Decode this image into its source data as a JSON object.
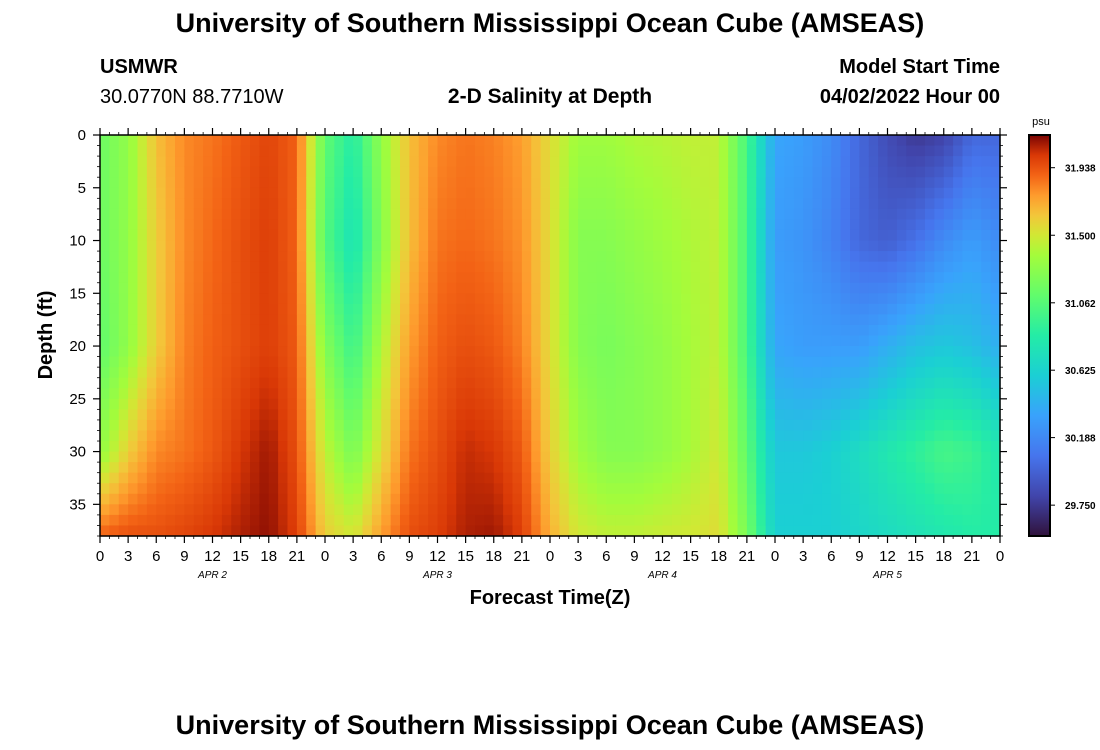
{
  "header": {
    "title": "University of Southern Mississippi Ocean Cube (AMSEAS)",
    "station_name": "USMWR",
    "station_coords": "30.0770N  88.7710W",
    "plot_title": "2-D Salinity at Depth",
    "model_start_label": "Model Start Time",
    "model_start_value": "04/02/2022 Hour 00",
    "bottom_title": "University of Southern Mississippi Ocean Cube (AMSEAS)"
  },
  "chart_data": {
    "type": "heatmap",
    "title": "2-D Salinity at Depth",
    "xlabel": "Forecast Time(Z)",
    "ylabel": "Depth (ft)",
    "x_hours_range": [
      0,
      96
    ],
    "y_range": [
      0,
      38
    ],
    "y_ticks": [
      0,
      5,
      10,
      15,
      20,
      25,
      30,
      35
    ],
    "x_tick_labels": [
      "0",
      "3",
      "6",
      "9",
      "12",
      "15",
      "18",
      "21",
      "0",
      "3",
      "6",
      "9",
      "12",
      "15",
      "18",
      "21",
      "0",
      "3",
      "6",
      "9",
      "12",
      "15",
      "18",
      "21",
      "0",
      "3",
      "6",
      "9",
      "12",
      "15",
      "18",
      "21",
      "0"
    ],
    "day_labels": [
      "APR 2",
      "APR 3",
      "APR 4",
      "APR 5"
    ],
    "colorbar": {
      "unit": "psu",
      "ticks": [
        "31.938",
        "31.500",
        "31.062",
        "30.625",
        "30.188",
        "29.750"
      ],
      "tick_values": [
        31.938,
        31.5,
        31.062,
        30.625,
        30.188,
        29.75
      ],
      "range": [
        29.55,
        32.15
      ]
    },
    "depth_levels_ft": [
      0,
      10,
      20,
      30,
      38
    ],
    "hours": [
      0,
      3,
      6,
      9,
      12,
      15,
      18,
      21,
      24,
      27,
      30,
      33,
      36,
      39,
      42,
      45,
      48,
      51,
      54,
      57,
      60,
      63,
      66,
      69,
      72,
      75,
      78,
      81,
      84,
      87,
      90,
      93,
      96
    ],
    "salinity_psu": [
      [
        31.15,
        31.3,
        31.65,
        31.8,
        31.85,
        31.92,
        31.98,
        31.9,
        31.1,
        30.85,
        31.3,
        31.65,
        31.8,
        31.85,
        31.82,
        31.75,
        31.55,
        31.35,
        31.35,
        31.4,
        31.42,
        31.45,
        31.45,
        31.0,
        30.35,
        30.3,
        30.2,
        30.0,
        29.85,
        29.75,
        29.8,
        30.0,
        30.0
      ],
      [
        31.15,
        31.3,
        31.6,
        31.8,
        31.88,
        31.95,
        32.0,
        31.9,
        31.05,
        30.75,
        31.25,
        31.65,
        31.85,
        31.88,
        31.85,
        31.78,
        31.55,
        31.25,
        31.25,
        31.3,
        31.35,
        31.4,
        31.45,
        31.0,
        30.3,
        30.25,
        30.15,
        30.0,
        29.95,
        30.05,
        30.2,
        30.3,
        30.2
      ],
      [
        31.1,
        31.3,
        31.6,
        31.82,
        31.9,
        31.95,
        32.0,
        31.92,
        31.25,
        30.95,
        31.4,
        31.75,
        31.9,
        31.95,
        31.92,
        31.82,
        31.55,
        31.25,
        31.2,
        31.25,
        31.3,
        31.38,
        31.45,
        31.0,
        30.35,
        30.3,
        30.3,
        30.3,
        30.4,
        30.5,
        30.55,
        30.5,
        30.4
      ],
      [
        31.3,
        31.6,
        31.8,
        31.85,
        31.92,
        32.02,
        32.1,
        31.95,
        31.45,
        31.2,
        31.55,
        31.85,
        31.95,
        32.05,
        32.02,
        31.92,
        31.6,
        31.35,
        31.25,
        31.25,
        31.3,
        31.38,
        31.5,
        31.1,
        30.55,
        30.55,
        30.6,
        30.7,
        30.8,
        30.9,
        31.0,
        30.95,
        30.8
      ],
      [
        31.9,
        31.95,
        31.95,
        31.98,
        32.02,
        32.08,
        32.12,
        32.0,
        31.6,
        31.5,
        31.75,
        31.95,
        32.0,
        32.08,
        32.1,
        32.0,
        31.7,
        31.5,
        31.45,
        31.45,
        31.48,
        31.5,
        31.55,
        31.2,
        30.6,
        30.6,
        30.6,
        30.65,
        30.7,
        30.75,
        30.8,
        30.85,
        30.85
      ]
    ]
  }
}
